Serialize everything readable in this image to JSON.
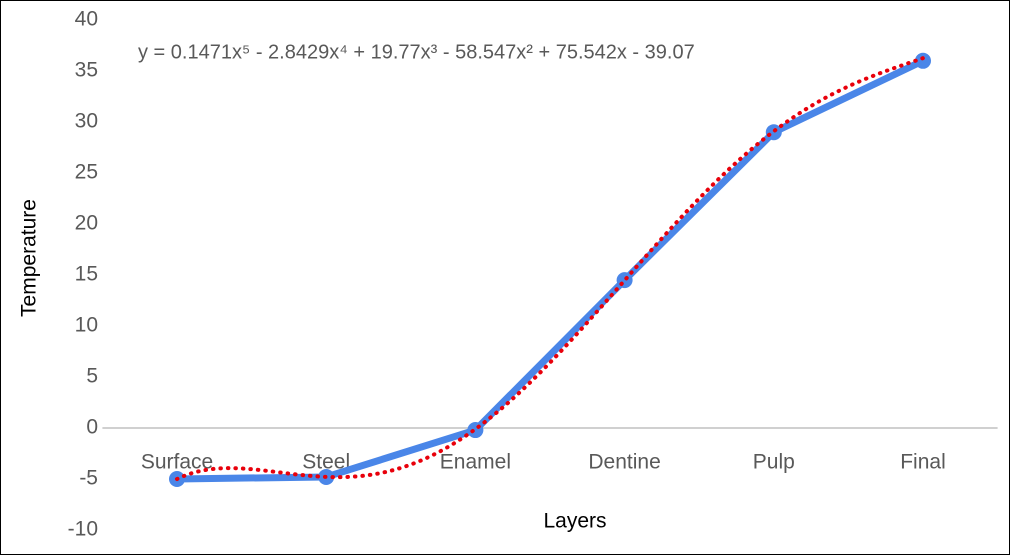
{
  "chart_data": {
    "type": "line",
    "y_label": "Temperature",
    "x_label": "Layers",
    "categories": [
      "Surface",
      "Steel",
      "Enamel",
      "Dentine",
      "Pulp",
      "Final"
    ],
    "series": [
      {
        "name": "Temperature",
        "color": "#4a86e8",
        "values": [
          -5,
          -4.8,
          -0.2,
          14.5,
          29,
          36
        ]
      }
    ],
    "trendline": {
      "type": "polynomial",
      "color": "#e8000b",
      "equation": "y = 0.1471x⁵ - 2.8429x⁴ + 19.77x³ - 58.547x² + 75.542x - 39.07",
      "coefficients": [
        0.1471,
        -2.8429,
        19.77,
        -58.547,
        75.542,
        -39.07
      ]
    },
    "ylim": [
      -10,
      40
    ],
    "yticks": [
      -10,
      -5,
      0,
      5,
      10,
      15,
      20,
      25,
      30,
      35,
      40
    ],
    "grid": false
  }
}
